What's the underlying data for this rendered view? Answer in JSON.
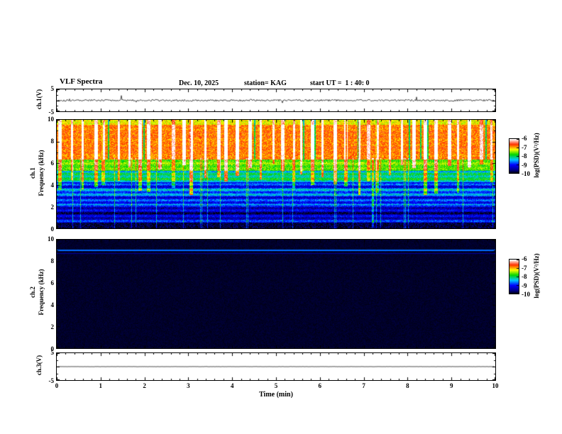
{
  "header": {
    "title": "VLF Spectra",
    "date": "Dec. 10, 2025",
    "station": "station= KAG",
    "start_ut": "start UT =  1 : 40: 0"
  },
  "xaxis": {
    "label": "Time (min)",
    "range": [
      0,
      10
    ],
    "ticks": [
      "0",
      "1",
      "2",
      "3",
      "4",
      "5",
      "6",
      "7",
      "8",
      "9",
      "10"
    ]
  },
  "colorbar": {
    "label": "log(PSD)(V²/Hz)",
    "ticks": [
      "-6",
      "-7",
      "-8",
      "-9",
      "-10"
    ],
    "range_log_psd": [
      -10,
      -6
    ],
    "colormap_positions": [
      0,
      0.1,
      0.25,
      0.4,
      0.55,
      0.7,
      0.85,
      1
    ],
    "colormap": [
      "#000000",
      "#00008c",
      "#0000ff",
      "#00c8ff",
      "#00d400",
      "#ffff00",
      "#ff3000",
      "#ffffff"
    ]
  },
  "chart_data": [
    {
      "id": "ch1_waveform",
      "type": "line",
      "ylabel": "ch.1(V)",
      "ylim": [
        -5,
        5
      ],
      "yticks": [
        "5",
        "-5"
      ],
      "baseline_v": 0,
      "noise_amplitude_v": 0.4,
      "spike_amplitude_v": 2.2,
      "spike_rate": 0.02,
      "description": "Noisy ch.1 voltage trace centered at 0 V with occasional spikes to about ±2 V over 0-10 min"
    },
    {
      "id": "ch1_spectrogram",
      "type": "heatmap",
      "channel_label": "ch.1",
      "ylabel": "Frequency (kHz)",
      "ylim_khz": [
        0,
        10
      ],
      "yticks": [
        "10",
        "8",
        "6",
        "4",
        "2",
        "0"
      ],
      "zlim_log_psd": [
        -10,
        -6
      ],
      "noise": 0.16,
      "bands": [
        {
          "f_khz": [
            0,
            0.55
          ],
          "level": 0.04
        },
        {
          "f_khz": [
            0.55,
            2.2
          ],
          "level": 0.17,
          "stripe": 0.9
        },
        {
          "f_khz": [
            2.2,
            4.3
          ],
          "level": 0.3,
          "stripe": 1.0
        },
        {
          "f_khz": [
            4.3,
            5.3
          ],
          "level": 0.46,
          "stripe": 0.6
        },
        {
          "f_khz": [
            5.3,
            6.4
          ],
          "level": 0.6,
          "stripe": 0.3
        },
        {
          "f_khz": [
            6.4,
            9.6
          ],
          "level": 0.8,
          "stripe": 0.15
        },
        {
          "f_khz": [
            9.6,
            10
          ],
          "level": 0.7,
          "stripe": 0
        }
      ],
      "streaks": {
        "count": 40,
        "min_depth_khz": 3.0,
        "max_depth_khz": 6.0,
        "strength": [
          0.18,
          0.4
        ]
      },
      "vertical_lines": {
        "count": 28,
        "boost": 0.22,
        "max_f_khz": 6.5
      },
      "top_gaps": {
        "count": 14,
        "drop": 0.28
      },
      "description": "Intense red/yellow emission band 6.5-10 kHz with quasi-periodic red streaks descending to 3-6 kHz, green band near 5-6.5 kHz, striped blue/cyan 2-5 kHz, dark blue/black below 2 kHz"
    },
    {
      "id": "ch2_spectrogram",
      "type": "heatmap",
      "channel_label": "ch.2",
      "ylabel": "Frequency (kHz)",
      "ylim_khz": [
        0,
        10
      ],
      "yticks": [
        "10",
        "8",
        "6",
        "4",
        "2",
        "0"
      ],
      "zlim_log_psd": [
        -10,
        -6
      ],
      "noise": 0.03,
      "bands": [
        {
          "f_khz": [
            0,
            10
          ],
          "level": 0.03
        }
      ],
      "lines": [
        {
          "f_khz": 9.05,
          "width_khz": 0.12,
          "level": 0.33
        },
        {
          "f_khz": 8.75,
          "width_khz": 0.05,
          "level": 0.12
        }
      ],
      "description": "Mostly at/below noise floor (black) with a narrow blue emission line near 9 kHz"
    },
    {
      "id": "ch3_waveform",
      "type": "line",
      "ylabel": "ch.3(V)",
      "ylim": [
        -5,
        5
      ],
      "yticks": [
        "5",
        "-5"
      ],
      "baseline_v": 0,
      "noise_amplitude_v": 0.04,
      "spike_amplitude_v": 0,
      "spike_rate": 0,
      "description": "Flat ch.3 voltage trace at 0 V"
    }
  ]
}
